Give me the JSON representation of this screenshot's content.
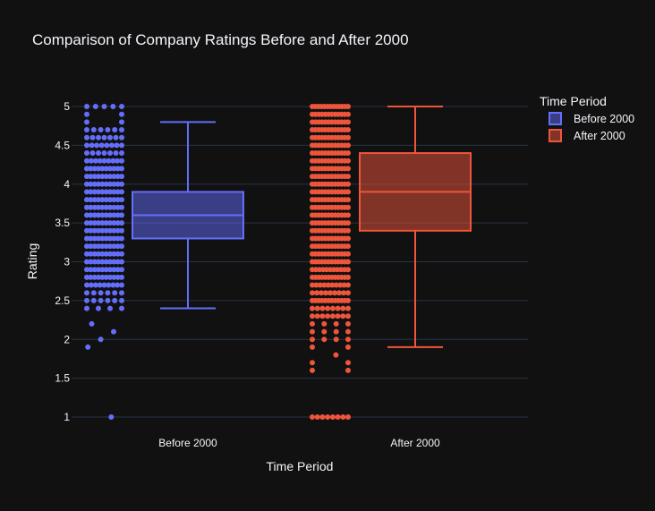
{
  "chart_data": {
    "type": "box",
    "title": "Comparison of Company Ratings Before and After 2000",
    "xlabel": "Time Period",
    "ylabel": "Rating",
    "categories": [
      "Before 2000",
      "After 2000"
    ],
    "ylim": [
      0.9,
      5.1
    ],
    "yticks": [
      1,
      1.5,
      2,
      2.5,
      3,
      3.5,
      4,
      4.5,
      5
    ],
    "ytick_labels": [
      "1",
      "1.5",
      "2",
      "2.5",
      "3",
      "3.5",
      "4",
      "4.5",
      "5"
    ],
    "grid": true,
    "legend": {
      "title": "Time Period",
      "placement": "top-right",
      "entries": [
        "Before 2000",
        "After 2000"
      ]
    },
    "series": [
      {
        "name": "Before 2000",
        "color": "#636efa",
        "fill": "rgba(99,110,250,0.5)",
        "min": 2.4,
        "q1": 3.3,
        "median": 3.6,
        "q3": 3.9,
        "max": 4.8,
        "points": [
          {
            "y": 5.0,
            "n": 5
          },
          {
            "y": 4.9,
            "n": 2
          },
          {
            "y": 4.8,
            "n": 2
          },
          {
            "y": 4.7,
            "n": 6
          },
          {
            "y": 4.6,
            "n": 7
          },
          {
            "y": 4.5,
            "n": 8
          },
          {
            "y": 4.4,
            "n": 7
          },
          {
            "y": 4.3,
            "n": 9
          },
          {
            "y": 4.2,
            "n": 10
          },
          {
            "y": 4.1,
            "n": 10
          },
          {
            "y": 4.0,
            "n": 10
          },
          {
            "y": 3.9,
            "n": 10
          },
          {
            "y": 3.8,
            "n": 10
          },
          {
            "y": 3.7,
            "n": 10
          },
          {
            "y": 3.6,
            "n": 10
          },
          {
            "y": 3.5,
            "n": 10
          },
          {
            "y": 3.4,
            "n": 10
          },
          {
            "y": 3.3,
            "n": 10
          },
          {
            "y": 3.2,
            "n": 10
          },
          {
            "y": 3.1,
            "n": 10
          },
          {
            "y": 3.0,
            "n": 10
          },
          {
            "y": 2.9,
            "n": 10
          },
          {
            "y": 2.8,
            "n": 10
          },
          {
            "y": 2.7,
            "n": 9
          },
          {
            "y": 2.6,
            "n": 6
          },
          {
            "y": 2.5,
            "n": 6
          },
          {
            "y": 2.4,
            "n": 4
          },
          {
            "y": 2.2,
            "n": 1
          },
          {
            "y": 2.1,
            "n": 1
          },
          {
            "y": 2.0,
            "n": 1
          },
          {
            "y": 1.9,
            "n": 1
          },
          {
            "y": 1.0,
            "n": 1
          }
        ]
      },
      {
        "name": "After 2000",
        "color": "#ef553b",
        "fill": "rgba(239,85,59,0.5)",
        "min": 1.9,
        "q1": 3.4,
        "median": 3.9,
        "q3": 4.4,
        "max": 5.0,
        "points": [
          {
            "y": 5.0,
            "n": 13
          },
          {
            "y": 4.9,
            "n": 12
          },
          {
            "y": 4.8,
            "n": 12
          },
          {
            "y": 4.7,
            "n": 12
          },
          {
            "y": 4.6,
            "n": 12
          },
          {
            "y": 4.5,
            "n": 12
          },
          {
            "y": 4.4,
            "n": 12
          },
          {
            "y": 4.3,
            "n": 12
          },
          {
            "y": 4.2,
            "n": 12
          },
          {
            "y": 4.1,
            "n": 12
          },
          {
            "y": 4.0,
            "n": 12
          },
          {
            "y": 3.9,
            "n": 12
          },
          {
            "y": 3.8,
            "n": 12
          },
          {
            "y": 3.7,
            "n": 12
          },
          {
            "y": 3.6,
            "n": 12
          },
          {
            "y": 3.5,
            "n": 12
          },
          {
            "y": 3.4,
            "n": 12
          },
          {
            "y": 3.3,
            "n": 12
          },
          {
            "y": 3.2,
            "n": 12
          },
          {
            "y": 3.1,
            "n": 12
          },
          {
            "y": 3.0,
            "n": 12
          },
          {
            "y": 2.9,
            "n": 11
          },
          {
            "y": 2.8,
            "n": 12
          },
          {
            "y": 2.7,
            "n": 10
          },
          {
            "y": 2.6,
            "n": 9
          },
          {
            "y": 2.5,
            "n": 12
          },
          {
            "y": 2.4,
            "n": 8
          },
          {
            "y": 2.3,
            "n": 8
          },
          {
            "y": 2.2,
            "n": 4
          },
          {
            "y": 2.1,
            "n": 4
          },
          {
            "y": 2.0,
            "n": 4
          },
          {
            "y": 1.9,
            "n": 2
          },
          {
            "y": 1.8,
            "n": 1
          },
          {
            "y": 1.7,
            "n": 2
          },
          {
            "y": 1.6,
            "n": 2
          },
          {
            "y": 1.0,
            "n": 8
          }
        ]
      }
    ]
  }
}
